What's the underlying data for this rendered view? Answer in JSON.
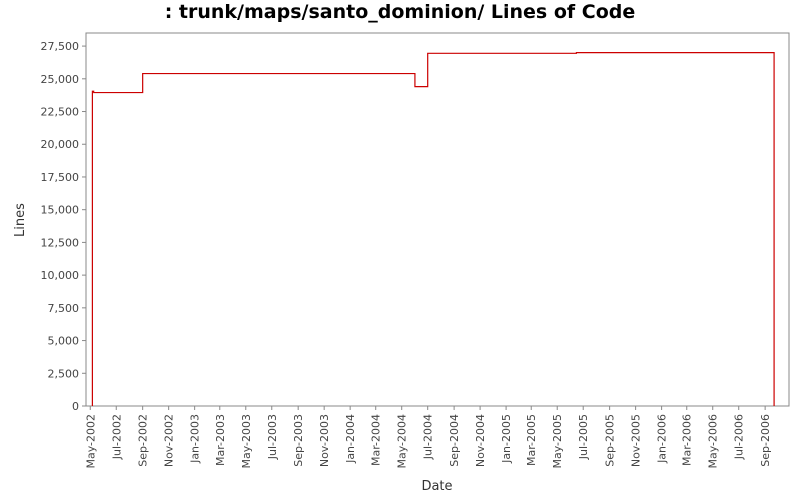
{
  "chart_data": {
    "type": "line",
    "title": ": trunk/maps/santo_dominion/ Lines of Code",
    "xlabel": "Date",
    "ylabel": "Lines",
    "ylim": [
      0,
      28500
    ],
    "xlim": [
      "2002-04-21",
      "2006-10-27"
    ],
    "grid": false,
    "line_style": "step",
    "yticks": [
      0,
      2500,
      5000,
      7500,
      10000,
      12500,
      15000,
      17500,
      20000,
      22500,
      25000,
      27500
    ],
    "ytick_labels": [
      "0",
      "2,500",
      "5,000",
      "7,500",
      "10,000",
      "12,500",
      "15,000",
      "17,500",
      "20,000",
      "22,500",
      "25,000",
      "27,500"
    ],
    "xticks": [
      "2002-05-01",
      "2002-07-01",
      "2002-09-01",
      "2002-11-01",
      "2003-01-01",
      "2003-03-01",
      "2003-05-01",
      "2003-07-01",
      "2003-09-01",
      "2003-11-01",
      "2004-01-01",
      "2004-03-01",
      "2004-05-01",
      "2004-07-01",
      "2004-09-01",
      "2004-11-01",
      "2005-01-01",
      "2005-03-01",
      "2005-05-01",
      "2005-07-01",
      "2005-09-01",
      "2005-11-01",
      "2006-01-01",
      "2006-03-01",
      "2006-05-01",
      "2006-07-01",
      "2006-09-01"
    ],
    "xtick_labels": [
      "May-2002",
      "Jul-2002",
      "Sep-2002",
      "Nov-2002",
      "Jan-2003",
      "Mar-2003",
      "May-2003",
      "Jul-2003",
      "Sep-2003",
      "Nov-2003",
      "Jan-2004",
      "Mar-2004",
      "May-2004",
      "Jul-2004",
      "Sep-2004",
      "Nov-2004",
      "Jan-2005",
      "Mar-2005",
      "May-2005",
      "Jul-2005",
      "Sep-2005",
      "Nov-2005",
      "Jan-2006",
      "Mar-2006",
      "May-2006",
      "Jul-2006",
      "Sep-2006"
    ],
    "series": [
      {
        "color": "#cc0000",
        "x": [
          "2002-05-06",
          "2002-05-06",
          "2002-05-09",
          "2002-09-01",
          "2004-06-01",
          "2004-07-01",
          "2005-06-15",
          "2006-09-22",
          "2006-09-22"
        ],
        "y": [
          0,
          24050,
          23950,
          25400,
          24400,
          26950,
          27000,
          27000,
          0
        ]
      }
    ]
  }
}
